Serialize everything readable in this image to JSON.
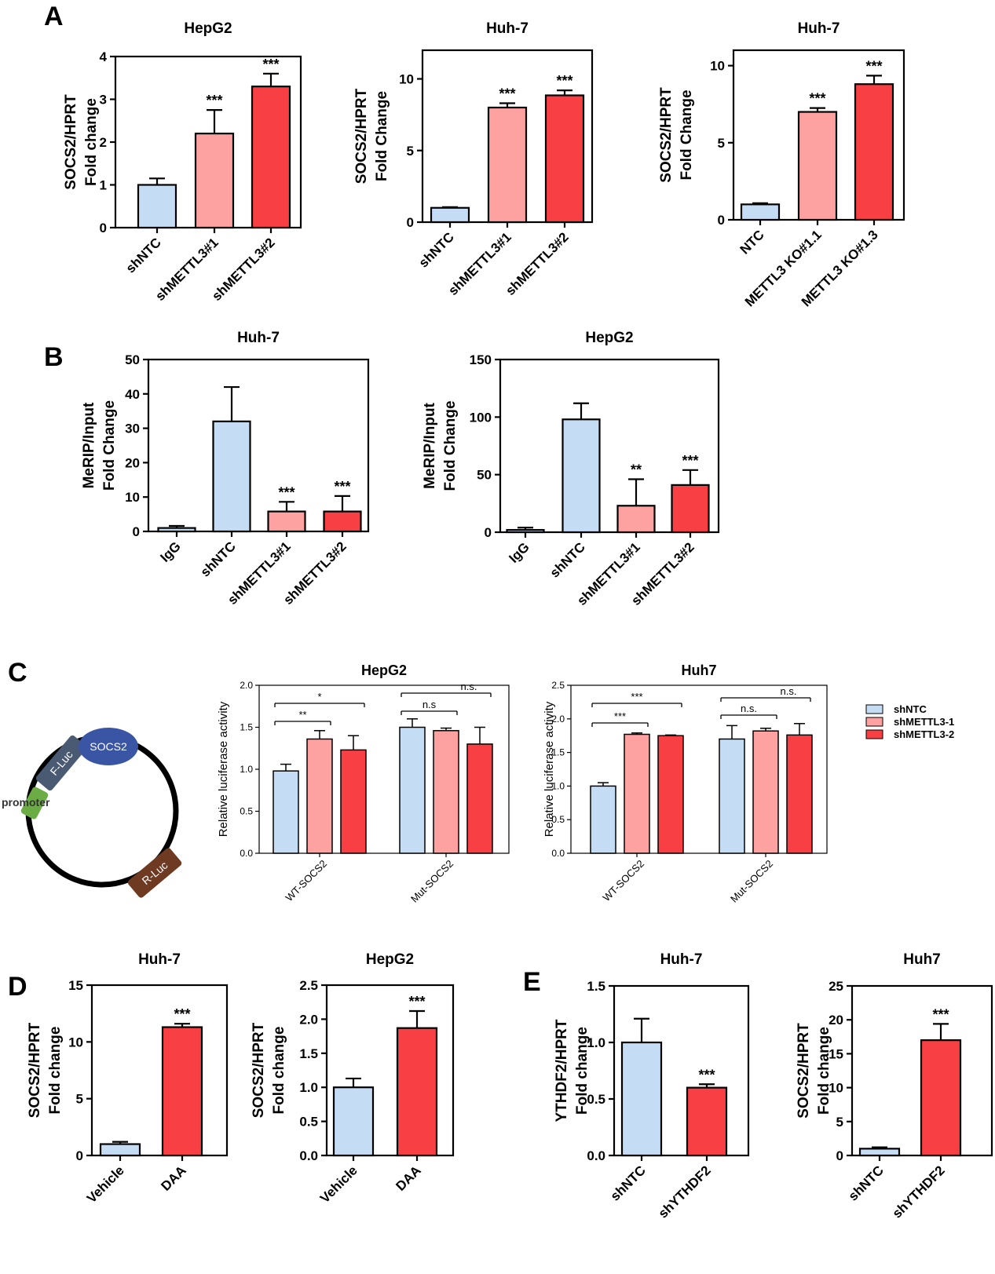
{
  "colors": {
    "blue": "#c5dcf5",
    "pink": "#fea1a1",
    "red": "#f73f44",
    "ink": "#000000"
  },
  "panel_letters": [
    "A",
    "B",
    "C",
    "D",
    "E"
  ],
  "plasmid": {
    "insert": "SOCS2",
    "reporter1": "F-Luc",
    "promoter": "promoter",
    "reporter2": "R-Luc"
  },
  "legend": [
    "shNTC",
    "shMETTL3-1",
    "shMETTL3-2"
  ],
  "chart_data": [
    {
      "id": "A1",
      "type": "bar",
      "title": "HepG2",
      "ylabel": [
        "SOCS2/HPRT",
        "Fold change"
      ],
      "categories": [
        "shNTC",
        "shMETTL3#1",
        "shMETTL3#2"
      ],
      "values": [
        1.0,
        2.2,
        3.3
      ],
      "errors": [
        0.15,
        0.55,
        0.3
      ],
      "bar_colors": [
        "blue",
        "pink",
        "red"
      ],
      "sig": [
        "",
        "***",
        "***"
      ],
      "ylim": [
        0,
        4
      ],
      "yticks": [
        0,
        1,
        2,
        3,
        4
      ],
      "ytick_labels": [
        "0",
        "1",
        "2",
        "3",
        "4"
      ]
    },
    {
      "id": "A2",
      "type": "bar",
      "title": "Huh-7",
      "ylabel": [
        "SOCS2/HPRT",
        "Fold Change"
      ],
      "categories": [
        "shNTC",
        "shMETTL3#1",
        "shMETTL3#2"
      ],
      "values": [
        1.0,
        8.0,
        8.85
      ],
      "errors": [
        0.05,
        0.3,
        0.35
      ],
      "bar_colors": [
        "blue",
        "pink",
        "red"
      ],
      "sig": [
        "",
        "***",
        "***"
      ],
      "ylim": [
        0,
        12
      ],
      "yticks": [
        0,
        5,
        10
      ],
      "ytick_labels": [
        "0",
        "5",
        "10"
      ]
    },
    {
      "id": "A3",
      "type": "bar",
      "title": "Huh-7",
      "ylabel": [
        "SOCS2/HPRT",
        "Fold Change"
      ],
      "categories": [
        "NTC",
        "METTL3 KO#1.1",
        "METTL3 KO#1.3"
      ],
      "values": [
        1.0,
        7.0,
        8.8
      ],
      "errors": [
        0.08,
        0.25,
        0.55
      ],
      "bar_colors": [
        "blue",
        "pink",
        "red"
      ],
      "sig": [
        "",
        "***",
        "***"
      ],
      "ylim": [
        0,
        11
      ],
      "yticks": [
        0,
        5,
        10
      ],
      "ytick_labels": [
        "0",
        "5",
        "10"
      ]
    },
    {
      "id": "B1",
      "type": "bar",
      "title": "Huh-7",
      "ylabel": [
        "MeRIP/Input",
        "Fold Change"
      ],
      "categories": [
        "IgG",
        "shNTC",
        "shMETTL3#1",
        "shMETTL3#2"
      ],
      "values": [
        1.0,
        32.0,
        5.8,
        5.8
      ],
      "errors": [
        0.6,
        10.0,
        2.8,
        4.5
      ],
      "bar_colors": [
        "blue",
        "blue",
        "pink",
        "red"
      ],
      "sig": [
        "",
        "",
        "***",
        "***"
      ],
      "ylim": [
        0,
        50
      ],
      "yticks": [
        0,
        10,
        20,
        30,
        40,
        50
      ],
      "ytick_labels": [
        "0",
        "10",
        "20",
        "30",
        "40",
        "50"
      ]
    },
    {
      "id": "B2",
      "type": "bar",
      "title": "HepG2",
      "ylabel": [
        "MeRIP/Input",
        "Fold Change"
      ],
      "categories": [
        "IgG",
        "shNTC",
        "shMETTL3#1",
        "shMETTL3#2"
      ],
      "values": [
        2.0,
        98.0,
        23.0,
        41.0
      ],
      "errors": [
        2.0,
        14.0,
        23.0,
        13.0
      ],
      "bar_colors": [
        "blue",
        "blue",
        "pink",
        "red"
      ],
      "sig": [
        "",
        "",
        "**",
        "***"
      ],
      "ylim": [
        0,
        150
      ],
      "yticks": [
        0,
        50,
        100,
        150
      ],
      "ytick_labels": [
        "0",
        "50",
        "100",
        "150"
      ]
    },
    {
      "id": "C1",
      "type": "bar",
      "title": "HepG2",
      "ylabel": [
        "Relative luciferase activity"
      ],
      "categories": [
        "WT-SOCS2",
        "Mut-SOCS2"
      ],
      "series": [
        {
          "name": "shNTC",
          "values": [
            0.98,
            1.5
          ],
          "errors": [
            0.08,
            0.1
          ]
        },
        {
          "name": "shMETTL3-1",
          "values": [
            1.36,
            1.46
          ],
          "errors": [
            0.1,
            0.03
          ]
        },
        {
          "name": "shMETTL3-2",
          "values": [
            1.23,
            1.3
          ],
          "errors": [
            0.17,
            0.2
          ]
        }
      ],
      "comparisons": [
        {
          "group": 0,
          "from": 0,
          "to": 1,
          "label": "**"
        },
        {
          "group": 0,
          "from": 0,
          "to": 2,
          "label": "*"
        },
        {
          "group": 1,
          "from": 0,
          "to": 1,
          "label": "n.s"
        },
        {
          "group": 1,
          "from": 0,
          "to": 2,
          "label": "n.s."
        }
      ],
      "ylim": [
        0,
        2.0
      ],
      "yticks": [
        0,
        0.5,
        1.0,
        1.5,
        2.0
      ],
      "ytick_labels": [
        "0.0",
        "0.5",
        "1.0",
        "1.5",
        "2.0"
      ]
    },
    {
      "id": "C2",
      "type": "bar",
      "title": "Huh7",
      "ylabel": [
        "Relative luciferase activity"
      ],
      "categories": [
        "WT-SOCS2",
        "Mut-SOCS2"
      ],
      "series": [
        {
          "name": "shNTC",
          "values": [
            1.0,
            1.7
          ],
          "errors": [
            0.05,
            0.2
          ]
        },
        {
          "name": "shMETTL3-1",
          "values": [
            1.77,
            1.82
          ],
          "errors": [
            0.02,
            0.04
          ]
        },
        {
          "name": "shMETTL3-2",
          "values": [
            1.75,
            1.76
          ],
          "errors": [
            0.01,
            0.17
          ]
        }
      ],
      "comparisons": [
        {
          "group": 0,
          "from": 0,
          "to": 1,
          "label": "***"
        },
        {
          "group": 0,
          "from": 0,
          "to": 2,
          "label": "***"
        },
        {
          "group": 1,
          "from": 0,
          "to": 1,
          "label": "n.s."
        },
        {
          "group": 1,
          "from": 0,
          "to": 2,
          "label": "n.s."
        }
      ],
      "ylim": [
        0,
        2.5
      ],
      "yticks": [
        0,
        0.5,
        1.0,
        1.5,
        2.0,
        2.5
      ],
      "ytick_labels": [
        "0.0",
        "0.5",
        "1.0",
        "1.5",
        "2.0",
        "2.5"
      ]
    },
    {
      "id": "D1",
      "type": "bar",
      "title": "Huh-7",
      "ylabel": [
        "SOCS2/HPRT",
        "Fold change"
      ],
      "categories": [
        "Vehicle",
        "DAA"
      ],
      "values": [
        1.0,
        11.3
      ],
      "errors": [
        0.2,
        0.3
      ],
      "bar_colors": [
        "blue",
        "red"
      ],
      "sig": [
        "",
        "***"
      ],
      "ylim": [
        0,
        15
      ],
      "yticks": [
        0,
        5,
        10,
        15
      ],
      "ytick_labels": [
        "0",
        "5",
        "10",
        "15"
      ]
    },
    {
      "id": "D2",
      "type": "bar",
      "title": "HepG2",
      "ylabel": [
        "SOCS2/HPRT",
        "Fold change"
      ],
      "categories": [
        "Vehicle",
        "DAA"
      ],
      "values": [
        1.0,
        1.87
      ],
      "errors": [
        0.13,
        0.25
      ],
      "bar_colors": [
        "blue",
        "red"
      ],
      "sig": [
        "",
        "***"
      ],
      "ylim": [
        0,
        2.5
      ],
      "yticks": [
        0,
        0.5,
        1.0,
        1.5,
        2.0,
        2.5
      ],
      "ytick_labels": [
        "0.0",
        "0.5",
        "1.0",
        "1.5",
        "2.0",
        "2.5"
      ]
    },
    {
      "id": "E1",
      "type": "bar",
      "title": "Huh-7",
      "ylabel": [
        "YTHDF2/HPRT",
        "Fold change"
      ],
      "categories": [
        "shNTC",
        "shYTHDF2"
      ],
      "values": [
        1.0,
        0.6
      ],
      "errors": [
        0.21,
        0.03
      ],
      "bar_colors": [
        "blue",
        "red"
      ],
      "sig": [
        "",
        "***"
      ],
      "ylim": [
        0,
        1.5
      ],
      "yticks": [
        0,
        0.5,
        1.0,
        1.5
      ],
      "ytick_labels": [
        "0.0",
        "0.5",
        "1.0",
        "1.5"
      ]
    },
    {
      "id": "E2",
      "type": "bar",
      "title": "Huh7",
      "ylabel": [
        "SOCS2/HPRT",
        "Fold change"
      ],
      "categories": [
        "shNTC",
        "shYTHDF2"
      ],
      "values": [
        1.0,
        17.0
      ],
      "errors": [
        0.2,
        2.4
      ],
      "bar_colors": [
        "blue",
        "red"
      ],
      "sig": [
        "",
        "***"
      ],
      "ylim": [
        0,
        25
      ],
      "yticks": [
        0,
        5,
        10,
        15,
        20,
        25
      ],
      "ytick_labels": [
        "0",
        "5",
        "10",
        "15",
        "20",
        "25"
      ]
    }
  ]
}
